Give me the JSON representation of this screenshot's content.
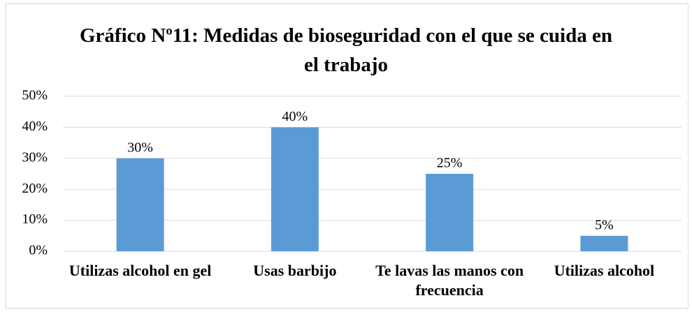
{
  "chart_data": {
    "type": "bar",
    "title": "Gráfico Nº11: Medidas de bioseguridad con el que se cuida en el trabajo",
    "categories": [
      "Utilizas alcohol en gel",
      "Usas barbijo",
      "Te lavas las manos con frecuencia",
      "Utilizas alcohol"
    ],
    "values": [
      30,
      40,
      25,
      5
    ],
    "value_labels": [
      "30%",
      "40%",
      "25%",
      "5%"
    ],
    "color": "#5b9bd5",
    "ylim": [
      0,
      50
    ],
    "yticks": [
      {
        "value": 0,
        "label": "0%"
      },
      {
        "value": 10,
        "label": "10%"
      },
      {
        "value": 20,
        "label": "20%"
      },
      {
        "value": 30,
        "label": "30%"
      },
      {
        "value": 40,
        "label": "40%"
      },
      {
        "value": 50,
        "label": "50%"
      }
    ],
    "grid": true
  }
}
